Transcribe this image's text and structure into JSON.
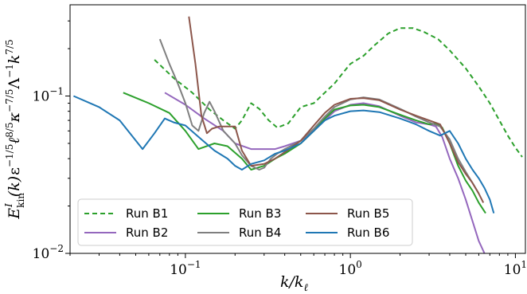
{
  "chart_data": {
    "type": "line",
    "xlabel": "k/k_ℓ",
    "ylabel": "E^I_kin(k) ε^{−1/5} ℓ^{8/5} κ^{−7/5} Λ^{−1} k^{7/5}",
    "x_scale": "log",
    "y_scale": "log",
    "xlim": [
      0.02,
      11.5
    ],
    "ylim": [
      0.01,
      0.38
    ],
    "x_ticks": [
      {
        "value": 0.1,
        "label": "10^-1"
      },
      {
        "value": 1,
        "label": "10^0"
      },
      {
        "value": 10,
        "label": "10^1"
      }
    ],
    "y_ticks": [
      {
        "value": 0.01,
        "label": "10^-2"
      },
      {
        "value": 0.1,
        "label": "10^-1"
      }
    ],
    "legend_position": "lower-left",
    "grid": false,
    "series": [
      {
        "name": "Run B1",
        "color": "#2ca02c",
        "dash": true,
        "x": [
          0.065,
          0.085,
          0.11,
          0.14,
          0.17,
          0.2,
          0.22,
          0.25,
          0.28,
          0.32,
          0.36,
          0.42,
          0.5,
          0.6,
          0.7,
          0.8,
          0.9,
          1.0,
          1.2,
          1.4,
          1.7,
          2.0,
          2.4,
          2.8,
          3.4,
          4.0,
          5.0,
          6.0,
          7.0,
          8.0,
          9.0,
          10.0,
          11.0
        ],
        "y": [
          0.17,
          0.13,
          0.105,
          0.082,
          0.07,
          0.062,
          0.07,
          0.09,
          0.083,
          0.07,
          0.063,
          0.067,
          0.085,
          0.09,
          0.105,
          0.12,
          0.14,
          0.16,
          0.18,
          0.21,
          0.25,
          0.27,
          0.27,
          0.255,
          0.23,
          0.195,
          0.15,
          0.115,
          0.09,
          0.07,
          0.056,
          0.047,
          0.041
        ]
      },
      {
        "name": "Run B2",
        "color": "#9467bd",
        "dash": false,
        "x": [
          0.075,
          0.1,
          0.13,
          0.17,
          0.2,
          0.25,
          0.3,
          0.35,
          0.4,
          0.5,
          0.6,
          0.7,
          0.8,
          1.0,
          1.2,
          1.5,
          2.0,
          2.5,
          3.0,
          3.3,
          3.6,
          4.0,
          4.5,
          5.0,
          5.5,
          6.0,
          6.5
        ],
        "y": [
          0.105,
          0.088,
          0.072,
          0.06,
          0.05,
          0.046,
          0.046,
          0.046,
          0.048,
          0.052,
          0.06,
          0.07,
          0.08,
          0.088,
          0.09,
          0.086,
          0.075,
          0.068,
          0.066,
          0.064,
          0.055,
          0.04,
          0.03,
          0.022,
          0.016,
          0.012,
          0.01
        ]
      },
      {
        "name": "Run B3",
        "color": "#2ca02c",
        "dash": false,
        "x": [
          0.042,
          0.06,
          0.08,
          0.1,
          0.12,
          0.15,
          0.18,
          0.22,
          0.25,
          0.3,
          0.35,
          0.4,
          0.5,
          0.6,
          0.7,
          0.8,
          1.0,
          1.2,
          1.5,
          2.0,
          2.5,
          3.0,
          3.3,
          3.6,
          4.0,
          4.5,
          5.0,
          5.5,
          6.0,
          6.6
        ],
        "y": [
          0.105,
          0.09,
          0.078,
          0.06,
          0.046,
          0.05,
          0.048,
          0.04,
          0.034,
          0.036,
          0.04,
          0.043,
          0.05,
          0.06,
          0.072,
          0.082,
          0.087,
          0.088,
          0.085,
          0.076,
          0.07,
          0.066,
          0.067,
          0.063,
          0.05,
          0.036,
          0.029,
          0.025,
          0.021,
          0.018
        ]
      },
      {
        "name": "Run B4",
        "color": "#7f7f7f",
        "dash": false,
        "x": [
          0.07,
          0.08,
          0.09,
          0.1,
          0.11,
          0.12,
          0.13,
          0.14,
          0.15,
          0.17,
          0.2,
          0.22,
          0.25,
          0.28,
          0.3,
          0.33,
          0.36,
          0.4,
          0.5,
          0.6,
          0.7,
          0.8,
          1.0,
          1.2,
          1.5,
          2.0,
          2.5,
          3.0,
          3.5,
          4.0,
          4.5,
          5.0,
          5.5,
          6.0
        ],
        "y": [
          0.23,
          0.16,
          0.12,
          0.09,
          0.065,
          0.06,
          0.078,
          0.092,
          0.08,
          0.06,
          0.05,
          0.042,
          0.036,
          0.034,
          0.035,
          0.04,
          0.043,
          0.046,
          0.052,
          0.062,
          0.074,
          0.085,
          0.095,
          0.098,
          0.095,
          0.083,
          0.074,
          0.068,
          0.064,
          0.053,
          0.04,
          0.033,
          0.028,
          0.024
        ]
      },
      {
        "name": "Run B5",
        "color": "#8c564b",
        "dash": false,
        "x": [
          0.105,
          0.115,
          0.125,
          0.135,
          0.145,
          0.16,
          0.2,
          0.22,
          0.25,
          0.3,
          0.35,
          0.4,
          0.45,
          0.5,
          0.6,
          0.7,
          0.8,
          1.0,
          1.2,
          1.5,
          2.0,
          2.5,
          3.0,
          3.5,
          4.0,
          4.5,
          5.0,
          5.5,
          6.0,
          6.4
        ],
        "y": [
          0.32,
          0.16,
          0.075,
          0.058,
          0.062,
          0.064,
          0.064,
          0.045,
          0.036,
          0.037,
          0.04,
          0.044,
          0.048,
          0.052,
          0.065,
          0.078,
          0.088,
          0.096,
          0.097,
          0.094,
          0.082,
          0.075,
          0.07,
          0.066,
          0.05,
          0.038,
          0.032,
          0.028,
          0.024,
          0.021
        ]
      },
      {
        "name": "Run B6",
        "color": "#1f77b4",
        "dash": false,
        "x": [
          0.021,
          0.03,
          0.04,
          0.055,
          0.065,
          0.075,
          0.085,
          0.1,
          0.12,
          0.15,
          0.18,
          0.2,
          0.22,
          0.25,
          0.3,
          0.35,
          0.4,
          0.5,
          0.6,
          0.7,
          0.8,
          1.0,
          1.2,
          1.5,
          2.0,
          2.5,
          3.0,
          3.5,
          4.0,
          4.5,
          5.0,
          5.5,
          6.0,
          6.5,
          7.0,
          7.4
        ],
        "y": [
          0.1,
          0.085,
          0.07,
          0.046,
          0.058,
          0.072,
          0.068,
          0.065,
          0.055,
          0.045,
          0.04,
          0.036,
          0.034,
          0.037,
          0.039,
          0.043,
          0.045,
          0.05,
          0.06,
          0.07,
          0.075,
          0.08,
          0.081,
          0.079,
          0.072,
          0.066,
          0.06,
          0.056,
          0.06,
          0.05,
          0.04,
          0.034,
          0.03,
          0.026,
          0.022,
          0.018
        ]
      }
    ]
  }
}
